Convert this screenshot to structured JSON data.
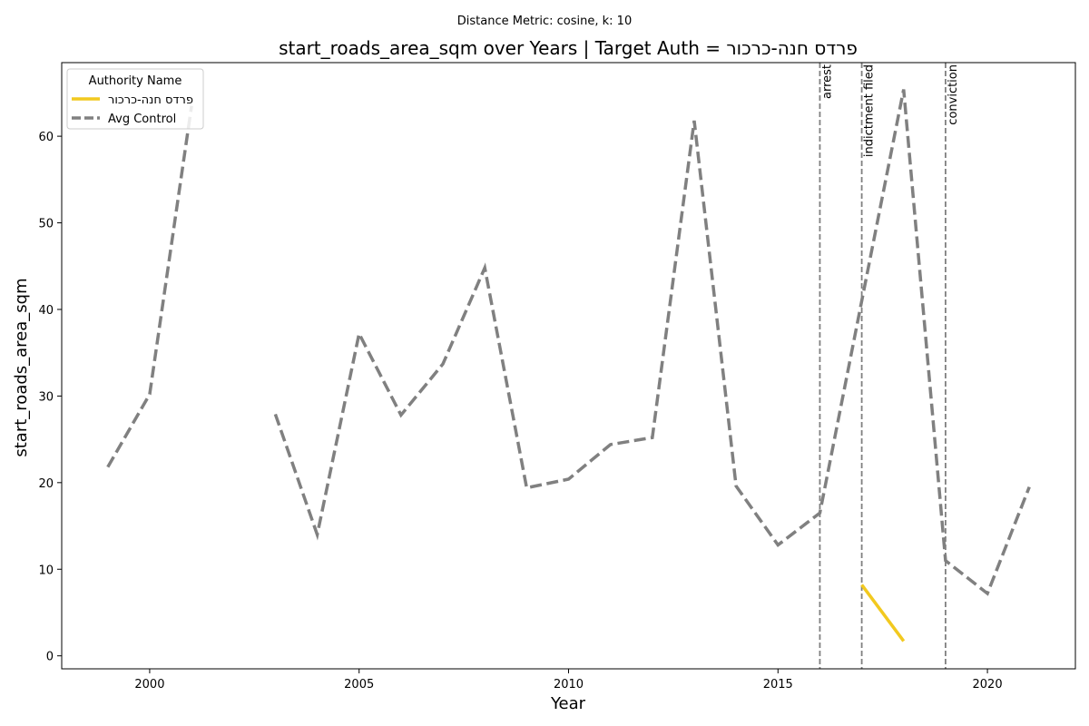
{
  "chart_data": {
    "type": "line",
    "suptitle": "Distance Metric: cosine, k: 10",
    "title": "start_roads_area_sqm over Years | Target Auth = פרדס חנה-כרכור",
    "xlabel": "Year",
    "ylabel": "start_roads_area_sqm",
    "xlim": [
      1997.9,
      2022.1
    ],
    "ylim": [
      -1.5,
      68.5
    ],
    "xticks": [
      2000,
      2005,
      2010,
      2015,
      2020
    ],
    "yticks": [
      0,
      10,
      20,
      30,
      40,
      50,
      60
    ],
    "grid": false,
    "legend": {
      "title": "Authority Name",
      "placement": "top-left"
    },
    "series": [
      {
        "name": "פרדס חנה-כרכור",
        "color": "#f2c91f",
        "style": "solid",
        "points": [
          [
            2017,
            8.2
          ],
          [
            2018,
            1.7
          ]
        ]
      },
      {
        "name": "Avg Control",
        "color": "#808080",
        "style": "dashed",
        "points": [
          [
            1999,
            21.8
          ],
          [
            2000,
            30.2
          ],
          [
            2001,
            63.5
          ],
          [
            2002,
            null
          ],
          [
            2003,
            27.9
          ],
          [
            2004,
            14.0
          ],
          [
            2005,
            37.2
          ],
          [
            2006,
            27.8
          ],
          [
            2007,
            33.7
          ],
          [
            2008,
            44.8
          ],
          [
            2009,
            19.4
          ],
          [
            2010,
            20.4
          ],
          [
            2011,
            24.4
          ],
          [
            2012,
            25.2
          ],
          [
            2013,
            61.8
          ],
          [
            2014,
            19.6
          ],
          [
            2015,
            12.8
          ],
          [
            2016,
            16.5
          ],
          [
            2017,
            41.0
          ],
          [
            2018,
            65.4
          ],
          [
            2019,
            11.0
          ],
          [
            2020,
            7.2
          ],
          [
            2021,
            19.5
          ]
        ]
      }
    ],
    "events": [
      {
        "x": 2016,
        "label": "arrest"
      },
      {
        "x": 2017,
        "label": "indictment filed"
      },
      {
        "x": 2019,
        "label": "conviction"
      }
    ]
  }
}
